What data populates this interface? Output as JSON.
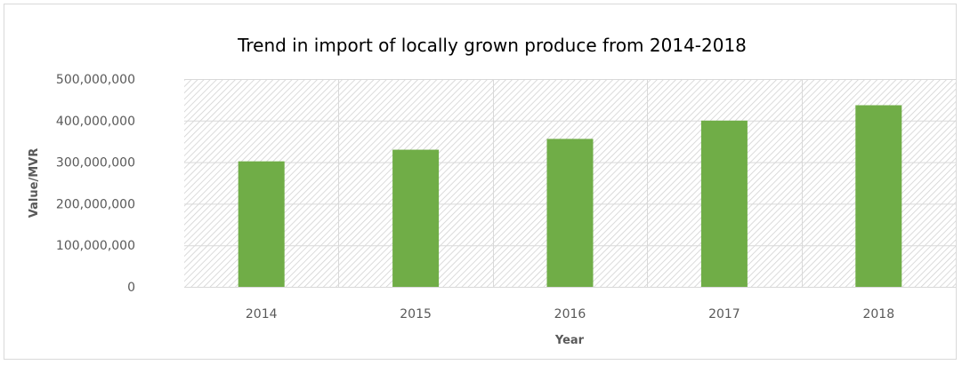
{
  "chart_data": {
    "type": "bar",
    "title": "Trend in import of locally grown produce from 2014-2018",
    "xlabel": "Year",
    "ylabel": "Value/MVR",
    "categories": [
      "2014",
      "2015",
      "2016",
      "2017",
      "2018"
    ],
    "values": [
      302000000,
      330000000,
      356000000,
      400000000,
      437000000
    ],
    "ylim": [
      0,
      500000000
    ],
    "yticks": [
      "0",
      "100,000,000",
      "200,000,000",
      "300,000,000",
      "400,000,000",
      "500,000,000"
    ],
    "grid": true,
    "legend": "none",
    "bar_color": "#70ad47",
    "plot_background": "hatched"
  }
}
